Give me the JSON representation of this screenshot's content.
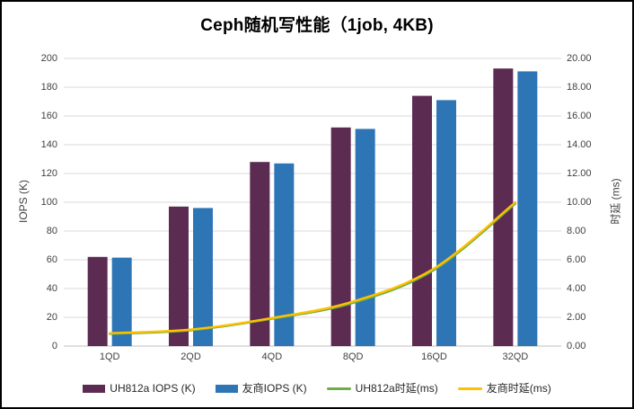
{
  "chart_data": {
    "type": "bar",
    "title": "Ceph随机写性能（1job, 4KB)",
    "categories": [
      "1QD",
      "2QD",
      "4QD",
      "8QD",
      "16QD",
      "32QD"
    ],
    "series": [
      {
        "name": "UH812a IOPS (K)",
        "kind": "bar",
        "axis": "left",
        "color": "#5C2B52",
        "values": [
          62,
          97,
          128,
          152,
          174,
          193
        ]
      },
      {
        "name": "友商IOPS (K)",
        "kind": "bar",
        "axis": "left",
        "color": "#2E75B6",
        "values": [
          61.5,
          96,
          127,
          151,
          171,
          191
        ]
      },
      {
        "name": "UH812a时延(ms)",
        "kind": "line",
        "axis": "right",
        "color": "#70AD47",
        "values": [
          0.85,
          1.1,
          1.9,
          3.0,
          5.3,
          9.9
        ]
      },
      {
        "name": "友商时延(ms)",
        "kind": "line",
        "axis": "right",
        "color": "#FFC000",
        "values": [
          0.9,
          1.15,
          1.95,
          3.1,
          5.4,
          10.0
        ]
      }
    ],
    "left_axis": {
      "title": "IOPS (K)",
      "min": 0,
      "max": 200,
      "step": 20,
      "ticks": [
        "0",
        "20",
        "40",
        "60",
        "80",
        "100",
        "120",
        "140",
        "160",
        "180",
        "200"
      ]
    },
    "right_axis": {
      "title": "时延 (ms)",
      "min": 0,
      "max": 20,
      "step": 2,
      "ticks": [
        "0.00",
        "2.00",
        "4.00",
        "6.00",
        "8.00",
        "10.00",
        "12.00",
        "14.00",
        "16.00",
        "18.00",
        "20.00"
      ]
    },
    "legend_position": "bottom",
    "grid": "horizontal",
    "colors": {
      "gridline": "#D9D9D9",
      "baseline": "#BFBFBF",
      "axis_text": "#404040",
      "title_text": "#000000"
    }
  }
}
